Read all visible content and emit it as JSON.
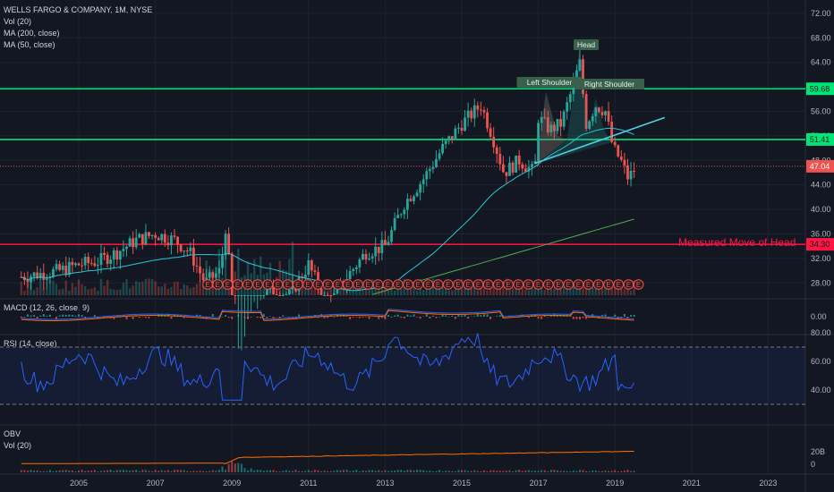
{
  "header": {
    "symbol_line": "WELLS FARGO & COMPANY, 1M, NYSE",
    "indicators": [
      "Vol (20)",
      "MA (200, close)",
      "MA (50, close)"
    ]
  },
  "panes": {
    "macd_label": "MACD (12, 26, close, 9)",
    "rsi_label": "RSI (14, close)",
    "obv_label": "OBV",
    "obv_vol_label": "Vol (20)"
  },
  "colors": {
    "up": "#26a69a",
    "down": "#ef5350",
    "green_line": "#00e676",
    "red_line": "#ff1744",
    "trend": "#4dd0e1",
    "ma": "#26c6da",
    "ma200": "#4caf50",
    "rsi": "#2962ff",
    "obv": "#ff6d00"
  },
  "chart_data": {
    "type": "candlestick",
    "x_ticks": [
      "2005",
      "2007",
      "2009",
      "2011",
      "2013",
      "2015",
      "2017",
      "2019",
      "2021",
      "2023"
    ],
    "y_ticks": [
      "72.00",
      "68.00",
      "64.00",
      "60.00",
      "56.00",
      "52.00",
      "48.00",
      "44.00",
      "40.00",
      "36.00",
      "32.00",
      "28.00"
    ],
    "ylim": [
      26,
      73
    ],
    "horizontal_levels": [
      {
        "price": 59.68,
        "label": "59.68",
        "color": "green"
      },
      {
        "price": 51.41,
        "label": "51.41",
        "color": "green"
      },
      {
        "price": 34.3,
        "label": "34.30",
        "color": "red"
      }
    ],
    "last_price": {
      "value": 47.04,
      "label": "47.04"
    },
    "annotations": {
      "head": "Head",
      "left_shoulder": "Left Shoulder",
      "right_shoulder": "Right Shoulder",
      "measured_move": "Measured Move of Head"
    },
    "earnings_marker": "E",
    "price_keypoints": [
      [
        2003.5,
        29
      ],
      [
        2004.0,
        29.5
      ],
      [
        2004.5,
        30
      ],
      [
        2005.0,
        31
      ],
      [
        2005.5,
        31.5
      ],
      [
        2006.0,
        33
      ],
      [
        2006.5,
        35
      ],
      [
        2007.0,
        36
      ],
      [
        2007.5,
        35
      ],
      [
        2007.9,
        33
      ],
      [
        2008.3,
        28
      ],
      [
        2008.7,
        30
      ],
      [
        2008.85,
        38
      ],
      [
        2009.1,
        14
      ],
      [
        2009.6,
        24
      ],
      [
        2010.0,
        27
      ],
      [
        2010.5,
        26
      ],
      [
        2011.0,
        31
      ],
      [
        2011.5,
        24
      ],
      [
        2012.0,
        29
      ],
      [
        2012.5,
        33
      ],
      [
        2013.0,
        34
      ],
      [
        2013.5,
        41
      ],
      [
        2014.0,
        45
      ],
      [
        2014.5,
        50
      ],
      [
        2015.0,
        54
      ],
      [
        2015.5,
        57
      ],
      [
        2015.8,
        52
      ],
      [
        2016.1,
        46
      ],
      [
        2016.5,
        48
      ],
      [
        2016.9,
        46
      ],
      [
        2017.0,
        55
      ],
      [
        2017.3,
        53
      ],
      [
        2017.6,
        54
      ],
      [
        2017.9,
        60
      ],
      [
        2018.08,
        64
      ],
      [
        2018.25,
        54
      ],
      [
        2018.5,
        57
      ],
      [
        2018.75,
        56
      ],
      [
        2018.95,
        50
      ],
      [
        2019.15,
        48
      ],
      [
        2019.35,
        45
      ],
      [
        2019.55,
        47.04
      ]
    ],
    "rsi_levels": [
      70,
      30
    ],
    "rsi_ticks": [
      "80.00",
      "60.00",
      "40.00"
    ],
    "macd_ticks": [
      "0.00"
    ],
    "obv_ticks": [
      "20B",
      "0"
    ]
  }
}
